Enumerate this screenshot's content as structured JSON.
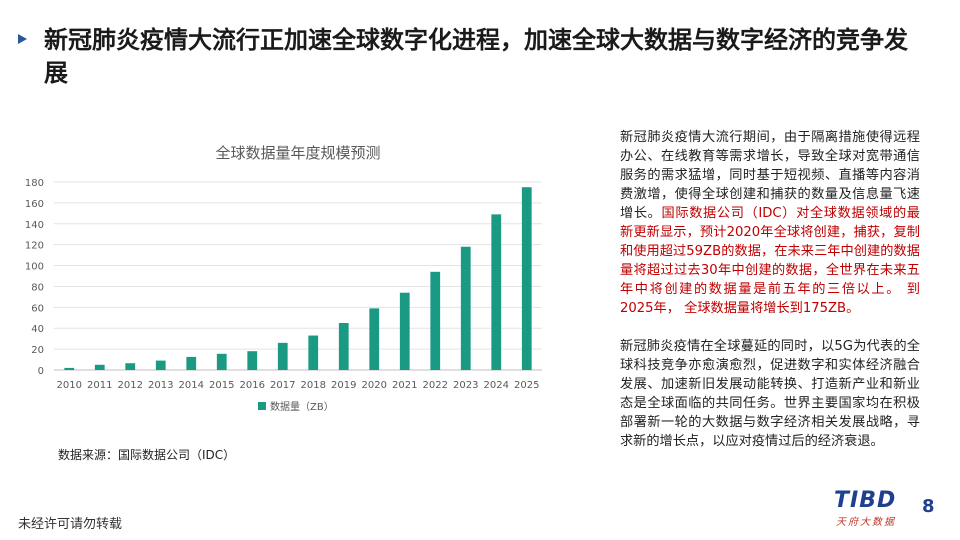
{
  "slide": {
    "title": "新冠肺炎疫情大流行正加速全球数字化进程，加速全球大数据与数字经济的竞争发展",
    "source_note": "数据来源：国际数据公司（IDC）",
    "paragraph1_black": "新冠肺炎疫情大流行期间，由于隔离措施使得远程办公、在线教育等需求增长，导致全球对宽带通信服务的需求猛增，同时基于短视频、直播等内容消费激增，使得全球创建和捕获的数量及信息量飞速增长。",
    "paragraph1_red": "国际数据公司（IDC）对全球数据领域的最新更新显示，预计2020年全球将创建，捕获，复制和使用超过59ZB的数据，在未来三年中创建的数据量将超过过去30年中创建的数据，全世界在未来五年中将创建的数据量是前五年的三倍以上。 到2025年， 全球数据量将增长到175ZB。",
    "paragraph2": "新冠肺炎疫情在全球蔓延的同时，以5G为代表的全球科技竞争亦愈演愈烈，促进数字和实体经济融合发展、加速新旧发展动能转换、打造新产业和新业态是全球面临的共同任务。世界主要国家均在积极部署新一轮的大数据与数字经济相关发展战略，寻求新的增长点，以应对疫情过后的经济衰退。",
    "footer_note": "未经许可请勿转载",
    "logo_main": "TIBD",
    "logo_sub": "天府大数据",
    "page_number": "8"
  },
  "colors": {
    "accent": "#2b579a",
    "bar": "#1a9a82",
    "highlight": "#c00000"
  },
  "chart_data": {
    "type": "bar",
    "title": "全球数据量年度规模预测",
    "categories": [
      "2010",
      "2011",
      "2012",
      "2013",
      "2014",
      "2015",
      "2016",
      "2017",
      "2018",
      "2019",
      "2020",
      "2021",
      "2022",
      "2023",
      "2024",
      "2025"
    ],
    "series": [
      {
        "name": "数据量（ZB）",
        "values": [
          2,
          5,
          6.5,
          9,
          12.5,
          15.5,
          18,
          26,
          33,
          45,
          59,
          74,
          94,
          118,
          149,
          175
        ]
      }
    ],
    "yticks": [
      0,
      20,
      40,
      60,
      80,
      100,
      120,
      140,
      160,
      180
    ],
    "ylim": [
      0,
      180
    ],
    "grid": true,
    "legend": "bottom"
  }
}
